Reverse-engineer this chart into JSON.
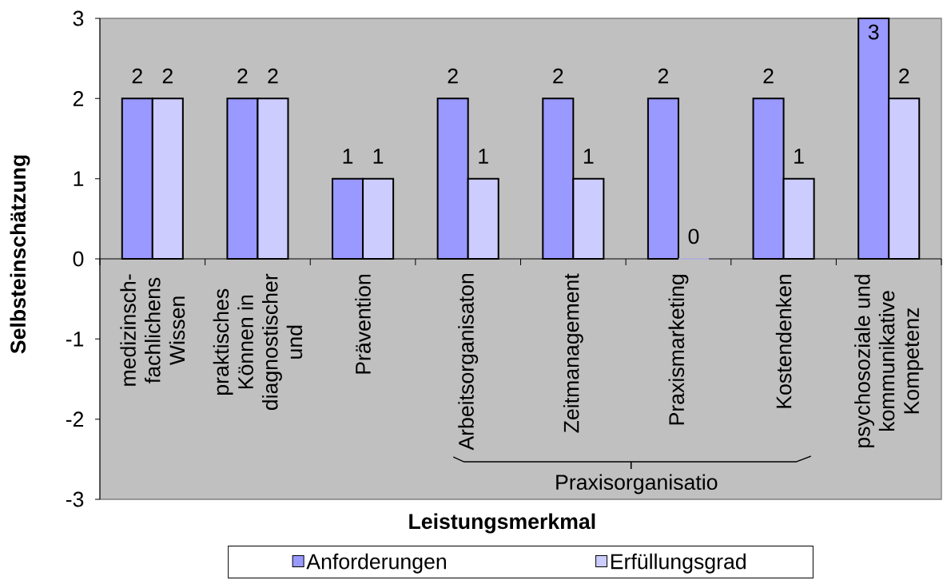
{
  "chart_data": {
    "type": "bar",
    "xlabel": "Leistungsmerkmal",
    "ylabel": "Selbsteinschätzung",
    "categories": [
      "medizinsch-fachlichens Wissen",
      "praktisches Können in diagnostischer und",
      "Prävention",
      "Arbeitsorganisaton",
      "Zeitmanagement",
      "Praxismarketing",
      "Kostendenken",
      "psychosoziale und kommunikative Kompetenz"
    ],
    "series": [
      {
        "name": "Anforderungen",
        "color": "#9999ff",
        "values": [
          2,
          2,
          1,
          2,
          2,
          2,
          2,
          3
        ]
      },
      {
        "name": "Erfüllungsgrad",
        "color": "#ccccff",
        "values": [
          2,
          2,
          1,
          1,
          1,
          0,
          1,
          2
        ]
      }
    ],
    "ylim": [
      -3,
      3
    ],
    "yticks": [
      -3,
      -2,
      -1,
      0,
      1,
      2,
      3
    ],
    "data_labels": true,
    "legend": "bottom",
    "annotations": [
      "Praxisorganisatio"
    ]
  }
}
